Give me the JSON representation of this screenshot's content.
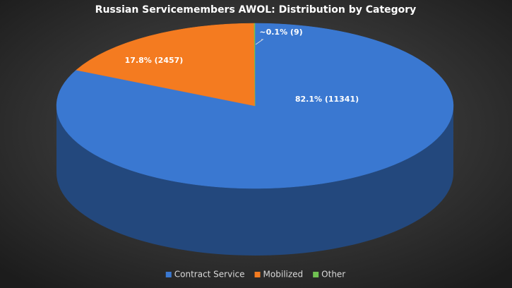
{
  "chart_data": {
    "type": "pie3d",
    "title": "Russian Servicemembers AWOL: Distribution by Category",
    "categories": [
      "Contract Service",
      "Mobilized",
      "Other"
    ],
    "values": [
      11341,
      2457,
      9
    ],
    "value_labels": [
      "82.1% (11341)",
      "17.8% (2457)",
      "~0.1% (9)"
    ],
    "colors": [
      "#3a78d1",
      "#f47b20",
      "#70c152"
    ],
    "legend": "bottom"
  }
}
